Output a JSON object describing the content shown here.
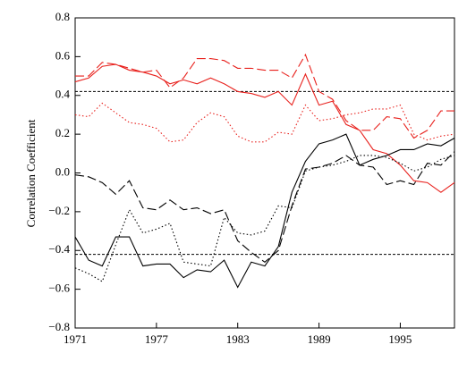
{
  "chart_data": {
    "type": "line",
    "ylabel": "Correlation Coefficient",
    "x": [
      1971,
      1972,
      1973,
      1974,
      1975,
      1976,
      1977,
      1978,
      1979,
      1980,
      1981,
      1982,
      1983,
      1984,
      1985,
      1986,
      1987,
      1988,
      1989,
      1990,
      1991,
      1992,
      1993,
      1994,
      1995,
      1996,
      1997,
      1998,
      1999
    ],
    "xlim": [
      1971,
      1999
    ],
    "xticks": [
      1971,
      1977,
      1983,
      1989,
      1995
    ],
    "ylim": [
      -0.8,
      0.8
    ],
    "yticks": [
      0.8,
      0.6,
      0.4,
      0.2,
      {
        "value": 0,
        "label": "0.0"
      },
      {
        "value": -0.2,
        "label": "−0.2"
      },
      {
        "value": -0.4,
        "label": "−0.4"
      },
      {
        "value": -0.6,
        "label": "−0.6"
      },
      {
        "value": -0.8,
        "label": "−0.8"
      }
    ],
    "hlines": [
      0.42,
      -0.42
    ],
    "series": [
      {
        "color": "#e8201c",
        "dash": "solid",
        "values": [
          0.47,
          0.49,
          0.55,
          0.56,
          0.53,
          0.52,
          0.5,
          0.46,
          0.48,
          0.46,
          0.49,
          0.46,
          0.42,
          0.41,
          0.39,
          0.42,
          0.35,
          0.51,
          0.35,
          0.37,
          0.25,
          0.22,
          0.12,
          0.1,
          0.04,
          -0.04,
          -0.05,
          -0.1,
          -0.05
        ]
      },
      {
        "color": "#e8201c",
        "dash": "dash",
        "values": [
          0.5,
          0.5,
          0.57,
          0.56,
          0.54,
          0.52,
          0.53,
          0.44,
          0.49,
          0.59,
          0.59,
          0.58,
          0.54,
          0.54,
          0.53,
          0.53,
          0.49,
          0.61,
          0.42,
          0.38,
          0.27,
          0.22,
          0.22,
          0.29,
          0.28,
          0.18,
          0.22,
          0.32,
          0.32
        ]
      },
      {
        "color": "#e8201c",
        "dash": "dot",
        "values": [
          0.3,
          0.29,
          0.36,
          0.31,
          0.26,
          0.25,
          0.23,
          0.16,
          0.17,
          0.26,
          0.31,
          0.29,
          0.19,
          0.16,
          0.16,
          0.21,
          0.2,
          0.35,
          0.27,
          0.28,
          0.3,
          0.31,
          0.33,
          0.33,
          0.35,
          0.2,
          0.17,
          0.19,
          0.2
        ]
      },
      {
        "color": "#000000",
        "dash": "solid",
        "values": [
          -0.33,
          -0.45,
          -0.48,
          -0.33,
          -0.33,
          -0.48,
          -0.47,
          -0.47,
          -0.54,
          -0.5,
          -0.51,
          -0.45,
          -0.59,
          -0.46,
          -0.48,
          -0.38,
          -0.1,
          0.06,
          0.15,
          0.17,
          0.2,
          0.04,
          0.07,
          0.09,
          0.12,
          0.12,
          0.15,
          0.14,
          0.18
        ]
      },
      {
        "color": "#000000",
        "dash": "dash",
        "values": [
          -0.01,
          -0.02,
          -0.05,
          -0.11,
          -0.04,
          -0.18,
          -0.19,
          -0.14,
          -0.19,
          -0.18,
          -0.21,
          -0.19,
          -0.35,
          -0.41,
          -0.46,
          -0.4,
          -0.17,
          0.02,
          0.03,
          0.05,
          0.09,
          0.04,
          0.03,
          -0.06,
          -0.04,
          -0.06,
          0.05,
          0.04,
          0.11
        ]
      },
      {
        "color": "#000000",
        "dash": "dot",
        "values": [
          -0.49,
          -0.52,
          -0.56,
          -0.37,
          -0.19,
          -0.31,
          -0.29,
          -0.26,
          -0.46,
          -0.47,
          -0.48,
          -0.23,
          -0.31,
          -0.32,
          -0.3,
          -0.17,
          -0.18,
          0.01,
          0.03,
          0.04,
          0.06,
          0.09,
          0.09,
          0.08,
          0.05,
          0.01,
          0.03,
          0.07,
          0.09
        ]
      }
    ]
  }
}
